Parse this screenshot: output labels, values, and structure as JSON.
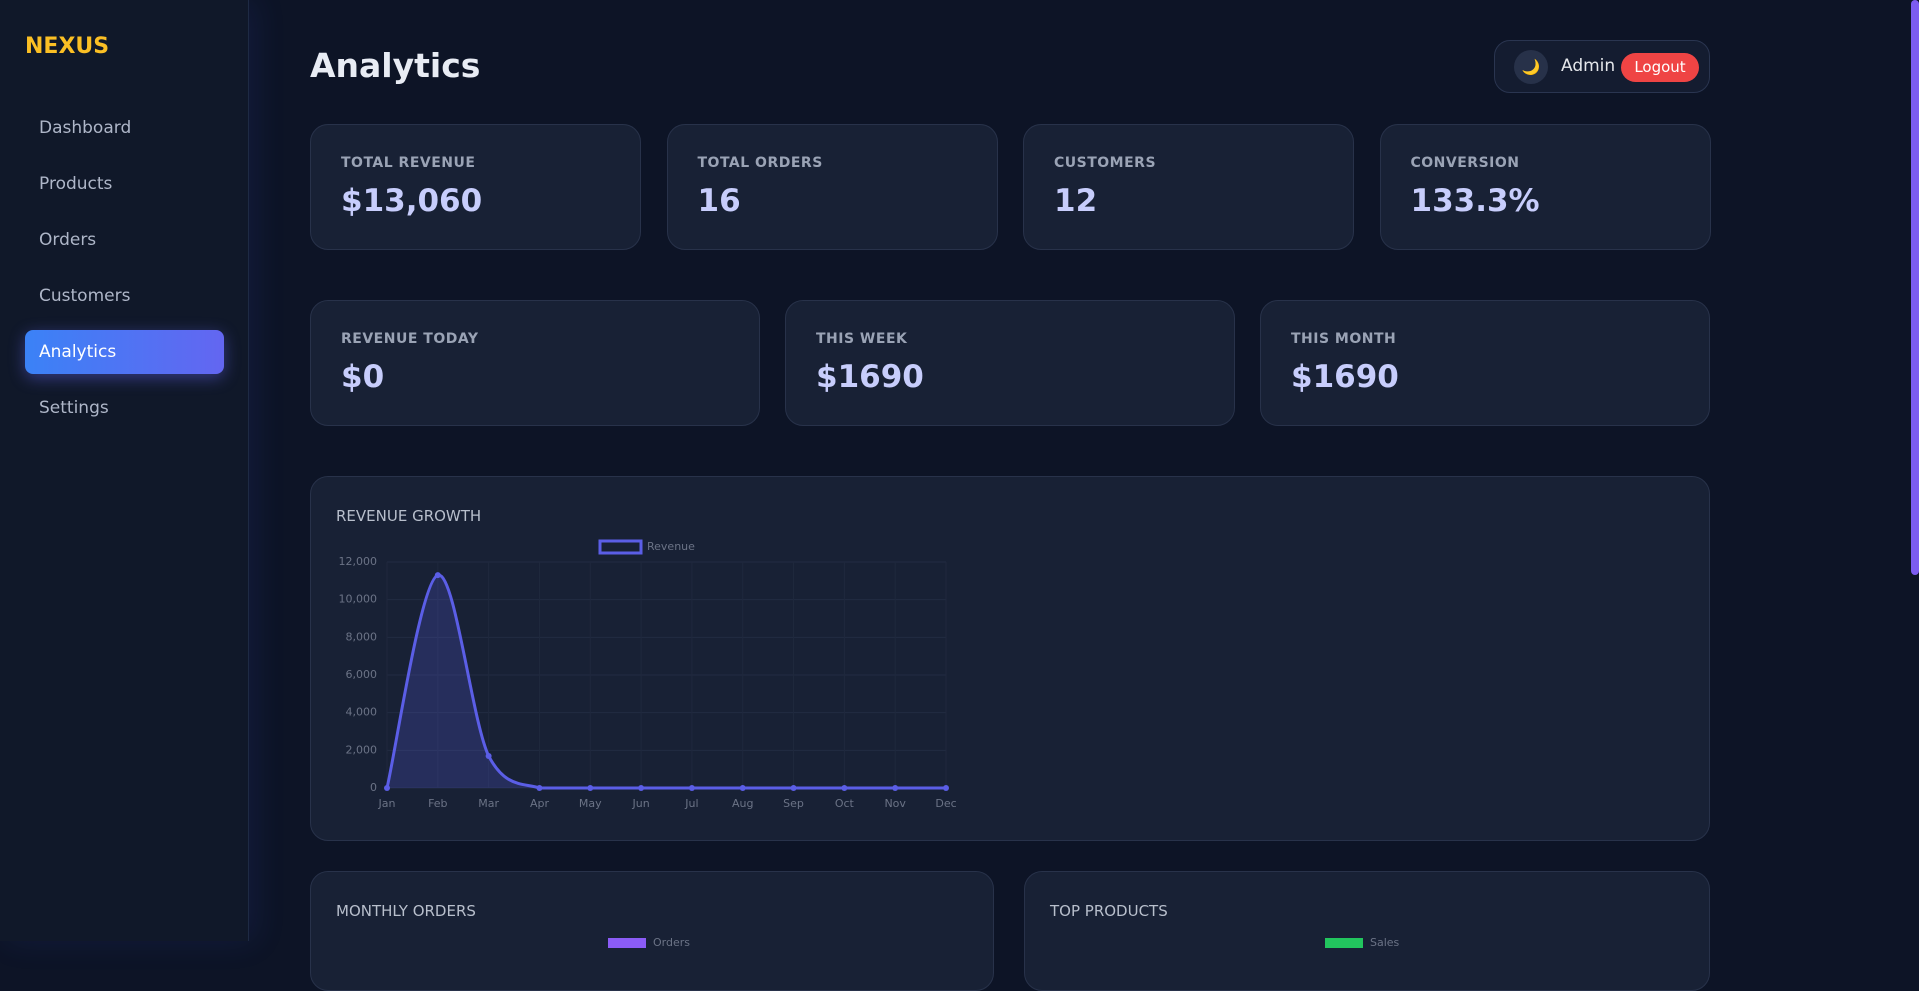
{
  "brand": "NEXUS",
  "nav": [
    "Dashboard",
    "Products",
    "Orders",
    "Customers",
    "Analytics",
    "Settings"
  ],
  "active_nav": 4,
  "header": {
    "title": "Analytics",
    "icon": "🌙",
    "user": "Admin",
    "logout": "Logout"
  },
  "stats_top": [
    {
      "label": "TOTAL REVENUE",
      "value": "$13,060"
    },
    {
      "label": "TOTAL ORDERS",
      "value": "16"
    },
    {
      "label": "CUSTOMERS",
      "value": "12"
    },
    {
      "label": "CONVERSION",
      "value": "133.3%"
    }
  ],
  "stats_period": [
    {
      "label": "REVENUE TODAY",
      "value": "$0"
    },
    {
      "label": "THIS WEEK",
      "value": "$1690"
    },
    {
      "label": "THIS MONTH",
      "value": "$1690"
    }
  ],
  "chart_data": {
    "type": "line",
    "title": "REVENUE GROWTH",
    "categories": [
      "Jan",
      "Feb",
      "Mar",
      "Apr",
      "May",
      "Jun",
      "Jul",
      "Aug",
      "Sep",
      "Oct",
      "Nov",
      "Dec"
    ],
    "series": [
      {
        "name": "Revenue",
        "color": "#5b5ee6",
        "values": [
          0,
          11300,
          1700,
          0,
          0,
          0,
          0,
          0,
          0,
          0,
          0,
          0
        ]
      }
    ],
    "ylim": [
      0,
      12000
    ],
    "yticks": [
      0,
      {
        "value": 2000,
        "label": "2,000"
      },
      {
        "value": 4000,
        "label": "4,000"
      },
      {
        "value": 6000,
        "label": "6,000"
      },
      {
        "value": 8000,
        "label": "8,000"
      },
      {
        "value": 10000,
        "label": "10,000"
      },
      {
        "value": 12000,
        "label": "12,000"
      }
    ],
    "grid": true
  },
  "panels": [
    {
      "title": "MONTHLY ORDERS",
      "legend": "Orders",
      "color": "#8b5cf6"
    },
    {
      "title": "TOP PRODUCTS",
      "legend": "Sales",
      "color": "#22c55e"
    }
  ]
}
